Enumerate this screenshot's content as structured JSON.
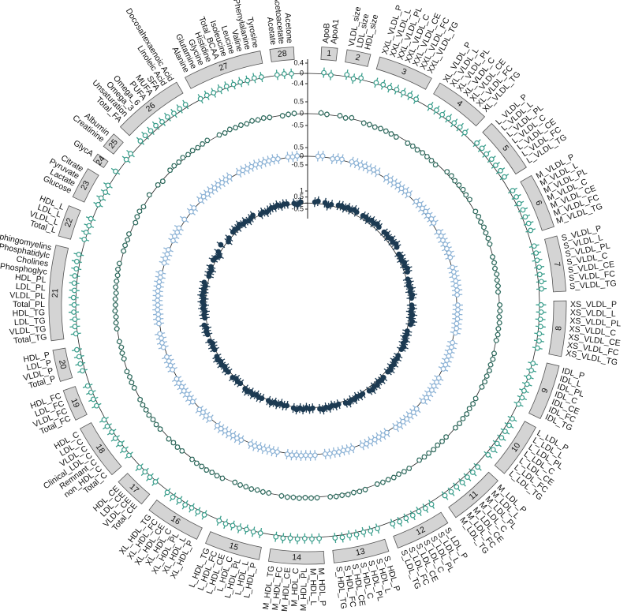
{
  "chart_data": {
    "type": "circular-forest",
    "groups": [
      {
        "id": 1,
        "items": [
          "ApoB",
          "ApoA1"
        ]
      },
      {
        "id": 2,
        "items": [
          "VLDL_size",
          "LDL_size",
          "HDL_size"
        ]
      },
      {
        "id": 3,
        "items": [
          "XXL_VLDL_P",
          "XXL_VLDL_L",
          "XXL_VLDL_PL",
          "XXL_VLDL_C",
          "XXL_VLDL_CE",
          "XXL_VLDL_FC",
          "XXL_VLDL_TG"
        ]
      },
      {
        "id": 4,
        "items": [
          "XL_VLDL_P",
          "XL_VLDL_L",
          "XL_VLDL_PL",
          "XL_VLDL_C",
          "XL_VLDL_CE",
          "XL_VLDL_FC",
          "XL_VLDL_TG"
        ]
      },
      {
        "id": 5,
        "items": [
          "L_VLDL_P",
          "L_VLDL_L",
          "L_VLDL_PL",
          "L_VLDL_C",
          "L_VLDL_CE",
          "L_VLDL_FC",
          "L_VLDL_TG"
        ]
      },
      {
        "id": 6,
        "items": [
          "M_VLDL_P",
          "M_VLDL_L",
          "M_VLDL_PL",
          "M_VLDL_C",
          "M_VLDL_CE",
          "M_VLDL_FC",
          "M_VLDL_TG"
        ]
      },
      {
        "id": 7,
        "items": [
          "S_VLDL_P",
          "S_VLDL_L",
          "S_VLDL_PL",
          "S_VLDL_C",
          "S_VLDL_CE",
          "S_VLDL_FC",
          "S_VLDL_TG"
        ]
      },
      {
        "id": 8,
        "items": [
          "XS_VLDL_P",
          "XS_VLDL_L",
          "XS_VLDL_PL",
          "XS_VLDL_C",
          "XS_VLDL_CE",
          "XS_VLDL_FC",
          "XS_VLDL_TG"
        ]
      },
      {
        "id": 9,
        "items": [
          "IDL_P",
          "IDL_L",
          "IDL_PL",
          "IDL_C",
          "IDL_CE",
          "IDL_FC",
          "IDL_TG"
        ]
      },
      {
        "id": 10,
        "items": [
          "L_LDL_P",
          "L_LDL_L",
          "L_LDL_PL",
          "L_LDL_C",
          "L_LDL_CE",
          "L_LDL_FC",
          "L_LDL_TG"
        ]
      },
      {
        "id": 11,
        "items": [
          "M_LDL_P",
          "M_LDL_L",
          "M_LDL_PL",
          "M_LDL_C",
          "M_LDL_CE",
          "M_LDL_FC",
          "M_LDL_TG"
        ]
      },
      {
        "id": 12,
        "items": [
          "S_LDL_P",
          "S_LDL_L",
          "S_LDL_PL",
          "S_LDL_C",
          "S_LDL_CE",
          "S_LDL_FC",
          "S_LDL_TG"
        ]
      },
      {
        "id": 13,
        "items": [
          "S_HDL_P",
          "S_HDL_L",
          "S_HDL_PL",
          "S_HDL_C",
          "S_HDL_CE",
          "S_HDL_FC",
          "S_HDL_TG"
        ]
      },
      {
        "id": 14,
        "items": [
          "M_HDL_P",
          "M_HDL_L",
          "M_HDL_PL",
          "M_HDL_C",
          "M_HDL_CE",
          "M_HDL_FC",
          "M_HDL_TG"
        ]
      },
      {
        "id": 15,
        "items": [
          "L_HDL_P",
          "L_HDL_L",
          "L_HDL_PL",
          "L_HDL_C",
          "L_HDL_CE",
          "L_HDL_FC",
          "L_HDL_TG"
        ]
      },
      {
        "id": 16,
        "items": [
          "XL_HDL_P",
          "XL_HDL_L",
          "XL_HDL_PL",
          "XL_HDL_C",
          "XL_HDL_CE",
          "XL_HDL_FC",
          "XL_HDL_TG"
        ]
      },
      {
        "id": 17,
        "items": [
          "Total_CE",
          "VLDL_CE",
          "LDL_CE",
          "HDL_CE"
        ]
      },
      {
        "id": 18,
        "items": [
          "Total_C",
          "non_HDL_C",
          "Remnant_C",
          "Clinical_LDL_C",
          "VLDL_C",
          "LDL_C",
          "HDL_C"
        ]
      },
      {
        "id": 19,
        "items": [
          "Total_FC",
          "VLDL_FC",
          "LDL_FC",
          "HDL_FC"
        ]
      },
      {
        "id": 20,
        "items": [
          "Total_P",
          "VLDL_P",
          "LDL_P",
          "HDL_P"
        ]
      },
      {
        "id": 21,
        "items": [
          "Total_TG",
          "VLDL_TG",
          "LDL_TG",
          "HDL_TG",
          "Total_PL",
          "VLDL_PL",
          "LDL_PL",
          "HDL_PL",
          "Phosphoglyc",
          "Cholines",
          "Phosphatidylc",
          "Sphingomyelins"
        ]
      },
      {
        "id": 22,
        "items": [
          "Total_L",
          "VLDL_L",
          "LDL_L",
          "HDL_L"
        ]
      },
      {
        "id": 23,
        "items": [
          "Glucose",
          "Lactate",
          "Pyruvate",
          "Citrate"
        ]
      },
      {
        "id": 24,
        "items": [
          "GlycA"
        ]
      },
      {
        "id": 25,
        "items": [
          "Creatinine",
          "Albumin"
        ]
      },
      {
        "id": 26,
        "items": [
          "Total_FA",
          "Unsaturation",
          "Omega_3",
          "Omega_6",
          "PUFA",
          "MUFA",
          "SFA",
          "Linoleic Acid",
          "Docosahexaenoic Acid"
        ]
      },
      {
        "id": 27,
        "items": [
          "Alanine",
          "Glutamine",
          "Glycine",
          "Histidine",
          "Total_BCAA",
          "Isoleucine",
          "Leucine",
          "Valine",
          "Phenylalanine",
          "Tyrosine"
        ]
      },
      {
        "id": 28,
        "items": [
          "Acetate",
          "Acetoacetate",
          "Acetone"
        ]
      }
    ],
    "rings": [
      {
        "color": "#3a9e8c",
        "ylim": [
          -0.4,
          0.4
        ],
        "yticks": [
          -0.4,
          0,
          0.4
        ],
        "error": 0.2,
        "values": [
          0.05,
          -0.02,
          0.08,
          -0.03,
          0.06,
          0.04,
          0.05,
          0.03,
          0.06,
          0.05,
          0.07,
          0.04,
          0.07,
          0.08,
          0.06,
          0.09,
          0.08,
          0.1,
          0.07,
          0.1,
          0.11,
          0.09,
          0.12,
          0.1,
          0.13,
          0.12,
          0.12,
          0.13,
          0.11,
          0.14,
          0.12,
          0.15,
          0.13,
          0.09,
          0.1,
          0.08,
          0.11,
          0.09,
          0.12,
          0.1,
          0.06,
          0.07,
          0.05,
          0.08,
          0.06,
          0.09,
          0.07,
          0.03,
          0.04,
          0.02,
          0.05,
          0.03,
          0.06,
          0.04,
          0.08,
          0.1,
          0.09,
          0.11,
          0.1,
          0.12,
          0.09,
          0.1,
          0.11,
          0.1,
          0.12,
          0.11,
          0.13,
          0.1,
          0.09,
          0.1,
          0.08,
          0.11,
          0.1,
          0.12,
          0.09,
          0.07,
          0.08,
          0.06,
          0.09,
          0.07,
          0.1,
          0.08,
          0.05,
          0.06,
          0.04,
          0.07,
          0.05,
          0.08,
          0.06,
          0.02,
          0.03,
          0.01,
          0.04,
          0.02,
          0.05,
          0.03,
          0.06,
          0.07,
          0.05,
          0.08,
          0.06,
          0.09,
          0.07,
          0.04,
          0.05,
          0.03,
          0.06,
          0.05,
          0.06,
          0.04,
          0.07,
          0.05,
          0.08,
          0.06,
          0.07,
          0.08,
          0.06,
          0.09,
          0.1,
          0.11,
          0.09,
          0.12,
          0.06,
          0.07,
          0.05,
          0.08,
          0.06,
          0.09,
          0.07,
          0.1,
          0.11,
          0.09,
          0.12,
          0.1,
          0.04,
          0.05,
          0.03,
          0.06,
          0.02,
          0.03,
          -0.01,
          0.04,
          0.09,
          0.03,
          0.05,
          0.1,
          0.12,
          0.11,
          0.13,
          0.09,
          0.11,
          0.08,
          0.1,
          0.12,
          0.03,
          0.04,
          0.02,
          0.05,
          0.06,
          0.04,
          0.05,
          0.03,
          0.06,
          0.04,
          0.02,
          0.03,
          0.01
        ]
      },
      {
        "color": "#2e6b5e",
        "ylim": [
          -0.5,
          0.5
        ],
        "yticks": [
          -0.5,
          0,
          0.5
        ],
        "error": 0.12,
        "values": [
          0.05,
          0.01,
          0.03,
          -0.02,
          0.04,
          -0.04,
          -0.03,
          -0.05,
          -0.02,
          -0.03,
          -0.04,
          -0.06,
          -0.05,
          -0.04,
          -0.06,
          -0.03,
          -0.04,
          -0.05,
          -0.07,
          0.06,
          0.08,
          0.05,
          0.07,
          0.09,
          0.06,
          0.08,
          0.03,
          0.04,
          0.02,
          0.05,
          0.03,
          0.04,
          0.02,
          -0.02,
          -0.01,
          -0.03,
          0,
          -0.02,
          -0.01,
          -0.03,
          0.02,
          0.03,
          0.01,
          0.04,
          0.02,
          0.03,
          0.01,
          0.04,
          0.05,
          0.03,
          0.06,
          0.04,
          0.05,
          0.03,
          0.02,
          0.03,
          0.01,
          0.04,
          0.02,
          0.03,
          0.01,
          -0.03,
          -0.02,
          -0.04,
          -0.01,
          -0.03,
          -0.02,
          -0.04,
          0.01,
          0.02,
          0,
          0.03,
          0.01,
          0.02,
          0,
          0.05,
          0.06,
          0.04,
          0.07,
          0.05,
          0.06,
          0.04,
          0.03,
          0.04,
          0.02,
          0.05,
          0.03,
          0.04,
          0.02,
          -0.01,
          0,
          -0.02,
          0.01,
          -0.01,
          0,
          -0.02,
          0.04,
          0.05,
          0.03,
          0.06,
          0.04,
          0.05,
          0.03,
          0.02,
          0.03,
          0.01,
          0.04,
          0.03,
          0.04,
          0.02,
          0.05,
          0.03,
          0.04,
          0.02,
          0.01,
          0.02,
          0,
          0.03,
          -0.02,
          -0.01,
          -0.03,
          0,
          0.02,
          0.03,
          0.01,
          0.04,
          0.02,
          0.03,
          0.01,
          0.05,
          0.04,
          0.03,
          0.06,
          0.05,
          0.01,
          0.02,
          0,
          0.03,
          -0.03,
          0.02,
          0.04,
          -0.01,
          0.06,
          0.02,
          -0.04,
          0.05,
          0.06,
          0.04,
          0.07,
          0.03,
          0.05,
          0.02,
          0.04,
          0.06,
          0.01,
          -0.02,
          0.03,
          0,
          0.02,
          -0.01,
          0.04,
          0.01,
          0.03,
          0,
          -0.02,
          0.01,
          0.03
        ]
      },
      {
        "color": "#8db3d6",
        "ylim": [
          -0.5,
          0.5
        ],
        "yticks": [
          -0.5,
          0,
          0.5
        ],
        "error": 0.3,
        "values": [
          0.02,
          0.06,
          -0.03,
          0.04,
          0.05,
          0.06,
          0.07,
          0.05,
          0.08,
          0.06,
          0.09,
          0.07,
          0.05,
          0.06,
          0.04,
          0.07,
          0.05,
          0.08,
          0.06,
          0.08,
          0.09,
          0.07,
          0.1,
          0.08,
          0.11,
          0.09,
          0.07,
          0.08,
          0.06,
          0.09,
          0.07,
          0.1,
          0.08,
          0.04,
          0.05,
          0.03,
          0.06,
          0.04,
          0.07,
          0.05,
          0.06,
          0.07,
          0.05,
          0.08,
          0.06,
          0.09,
          0.07,
          0.03,
          0.04,
          0.02,
          0.05,
          0.03,
          0.06,
          0.04,
          0.05,
          0.06,
          0.04,
          0.07,
          0.05,
          0.08,
          0.06,
          0.07,
          0.08,
          0.06,
          0.09,
          0.07,
          0.1,
          0.08,
          0.04,
          0.05,
          0.03,
          0.06,
          0.04,
          0.07,
          0.05,
          0.02,
          0.03,
          0.01,
          0.04,
          0.02,
          0.05,
          0.03,
          0.05,
          0.06,
          0.04,
          0.07,
          0.05,
          0.08,
          0.06,
          0.03,
          0.04,
          0.02,
          0.05,
          0.03,
          0.06,
          0.04,
          0.06,
          0.07,
          0.05,
          0.08,
          0.06,
          0.09,
          0.07,
          0.04,
          0.05,
          0.03,
          0.06,
          0.05,
          0.06,
          0.04,
          0.07,
          0.05,
          0.08,
          0.06,
          0.03,
          0.04,
          0.02,
          0.05,
          0.06,
          0.07,
          0.05,
          0.08,
          0.04,
          0.05,
          0.03,
          0.06,
          0.04,
          0.07,
          0.05,
          0.08,
          0.06,
          0.07,
          0.05,
          0.08,
          0.03,
          0.04,
          0.02,
          0.05,
          0.01,
          0.05,
          0.02,
          0.06,
          0.07,
          0.02,
          0.04,
          0.06,
          0.08,
          0.05,
          0.07,
          0.04,
          0.06,
          0.03,
          0.05,
          0.07,
          0.02,
          0.04,
          0.01,
          0.03,
          0.05,
          0.02,
          0.04,
          0.03,
          0.05,
          0.02,
          0.03,
          0.01,
          0.04
        ]
      },
      {
        "color": "#1c3a52",
        "ylim": [
          -0.5,
          1
        ],
        "yticks": [
          -0.5,
          0,
          0.5,
          1
        ],
        "error": 0.4,
        "values": [
          0.1,
          0.2,
          0.15,
          -0.05,
          0.1,
          0.2,
          0.25,
          0.15,
          0.3,
          0.2,
          0.35,
          0.25,
          0.25,
          0.3,
          0.2,
          0.35,
          0.25,
          0.4,
          0.3,
          0.3,
          0.35,
          0.25,
          0.4,
          0.3,
          0.45,
          0.35,
          0.2,
          0.25,
          0.15,
          0.3,
          0.2,
          0.35,
          0.25,
          0.1,
          0.15,
          0.05,
          0.2,
          0.1,
          0.25,
          0.15,
          0.15,
          0.2,
          0.1,
          0.25,
          0.15,
          0.3,
          0.2,
          0.05,
          0.1,
          0,
          0.15,
          0.05,
          0.2,
          0.1,
          0.1,
          0.15,
          0.05,
          0.2,
          0.1,
          0.25,
          0.15,
          0.2,
          0.25,
          0.15,
          0.3,
          0.2,
          0.35,
          0.25,
          0.15,
          0.2,
          0.1,
          0.25,
          0.15,
          0.3,
          0.2,
          0.1,
          0.15,
          0.05,
          0.2,
          0.1,
          0.25,
          0.15,
          0.05,
          0.1,
          0,
          0.15,
          0.05,
          0.2,
          0.1,
          0,
          0.05,
          -0.05,
          0.1,
          0,
          0.15,
          0.05,
          0.1,
          0.15,
          0.05,
          0.2,
          0.1,
          0.25,
          0.15,
          0.05,
          0.1,
          0,
          0.15,
          0.1,
          0.15,
          0.05,
          0.2,
          0.1,
          0.25,
          0.15,
          0.05,
          0.1,
          0,
          0.15,
          0.15,
          0.2,
          0.1,
          0.25,
          0.1,
          0.15,
          0.05,
          0.2,
          0.1,
          0.25,
          0.15,
          0.3,
          0.2,
          0.25,
          0.15,
          0.3,
          0.05,
          0.1,
          0,
          0.15,
          0.2,
          0.1,
          -0.1,
          0.15,
          0.3,
          -0.05,
          0.1,
          0.2,
          0.25,
          0.15,
          0.3,
          0.1,
          0.2,
          0.05,
          0.15,
          0.25,
          0,
          0.1,
          -0.05,
          0.05,
          0.15,
          0.1,
          0.2,
          0.05,
          0.15,
          0.1,
          0.05,
          -0.1,
          0.1
        ]
      }
    ]
  }
}
